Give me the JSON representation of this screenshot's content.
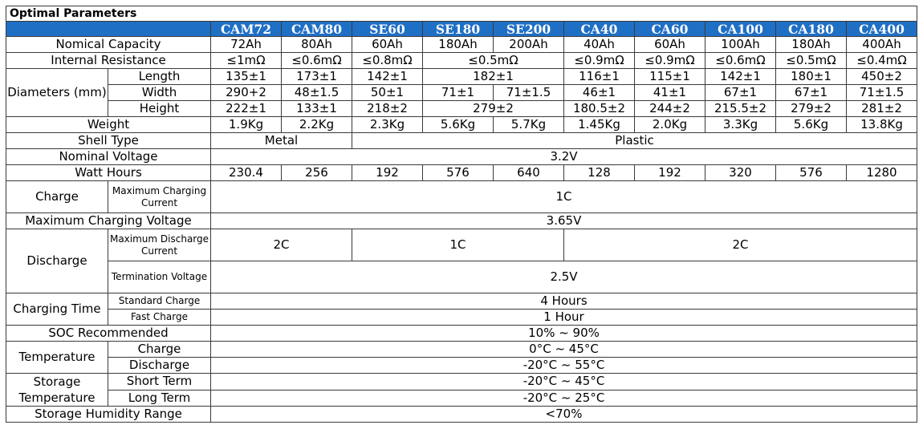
{
  "title": "Optimal Parameters",
  "models": [
    "CAM72",
    "CAM80",
    "SE60",
    "SE180",
    "SE200",
    "CA40",
    "CA60",
    "CA100",
    "CA180",
    "CA400"
  ],
  "rows": {
    "nominal_capacity": {
      "label": "Nomical Capacity",
      "values": [
        "72Ah",
        "80Ah",
        "60Ah",
        "180Ah",
        "200Ah",
        "40Ah",
        "60Ah",
        "100Ah",
        "180Ah",
        "400Ah"
      ]
    },
    "internal_resistance": {
      "label": "Internal Resistance",
      "values": [
        "≤1mΩ",
        "≤0.6mΩ",
        "≤0.8mΩ",
        "≤0.5mΩ",
        "≤0.9mΩ",
        "≤0.9mΩ",
        "≤0.6mΩ",
        "≤0.5mΩ",
        "≤0.4mΩ"
      ]
    },
    "diameters": {
      "label": "Diameters (mm)",
      "length": {
        "label": "Length",
        "values": [
          "135±1",
          "173±1",
          "142±1",
          "182±1",
          "116±1",
          "115±1",
          "142±1",
          "180±1",
          "450±2"
        ]
      },
      "width": {
        "label": "Width",
        "values": [
          "290+2",
          "48±1.5",
          "50±1",
          "71±1",
          "71±1.5",
          "46±1",
          "41±1",
          "67±1",
          "67±1",
          "71±1.5"
        ]
      },
      "height": {
        "label": "Height",
        "values": [
          "222±1",
          "133±1",
          "218±2",
          "279±2",
          "180.5±2",
          "244±2",
          "215.5±2",
          "279±2",
          "281±2"
        ]
      }
    },
    "weight": {
      "label": "Weight",
      "values": [
        "1.9Kg",
        "2.2Kg",
        "2.3Kg",
        "5.6Kg",
        "5.7Kg",
        "1.45Kg",
        "2.0Kg",
        "3.3Kg",
        "5.6Kg",
        "13.8Kg"
      ]
    },
    "shell_type": {
      "label": "Shell Type",
      "values": [
        "Metal",
        "Plastic"
      ]
    },
    "nominal_voltage": {
      "label": "Nominal Voltage",
      "value": "3.2V"
    },
    "watt_hours": {
      "label": "Watt Hours",
      "values": [
        "230.4",
        "256",
        "192",
        "576",
        "640",
        "128",
        "192",
        "320",
        "576",
        "1280"
      ]
    },
    "charge": {
      "label": "Charge",
      "max_current_label": "Maximum Charging Current",
      "max_current": "1C"
    },
    "max_charging_voltage": {
      "label": "Maximum Charging Voltage",
      "value": "3.65V"
    },
    "discharge": {
      "label": "Discharge",
      "max_current_label": "Maximum Discharge Current",
      "max_current_values": [
        "2C",
        "1C",
        "2C"
      ],
      "termination_label": "Termination Voltage",
      "termination": "2.5V"
    },
    "charging_time": {
      "label": "Charging Time",
      "standard_label": "Standard Charge",
      "standard": "4 Hours",
      "fast_label": "Fast Charge",
      "fast": "1 Hour"
    },
    "soc": {
      "label": "SOC Recommended",
      "value": "10% ~ 90%"
    },
    "temperature": {
      "label": "Temperature",
      "charge_label": "Charge",
      "charge": "0°C ~ 45°C",
      "discharge_label": "Discharge",
      "discharge": "-20°C ~ 55°C"
    },
    "storage_temperature": {
      "label": "Storage Temperature",
      "short_label": "Short Term",
      "short": "-20°C ~ 45°C",
      "long_label": "Long Term",
      "long": "-20°C ~ 25°C"
    },
    "humidity": {
      "label": "Storage Humidity Range",
      "value": "<70%"
    }
  },
  "colors": {
    "header_bg": "#1f6fc5",
    "header_text": "#ffffff",
    "border": "#3a3a3a"
  }
}
